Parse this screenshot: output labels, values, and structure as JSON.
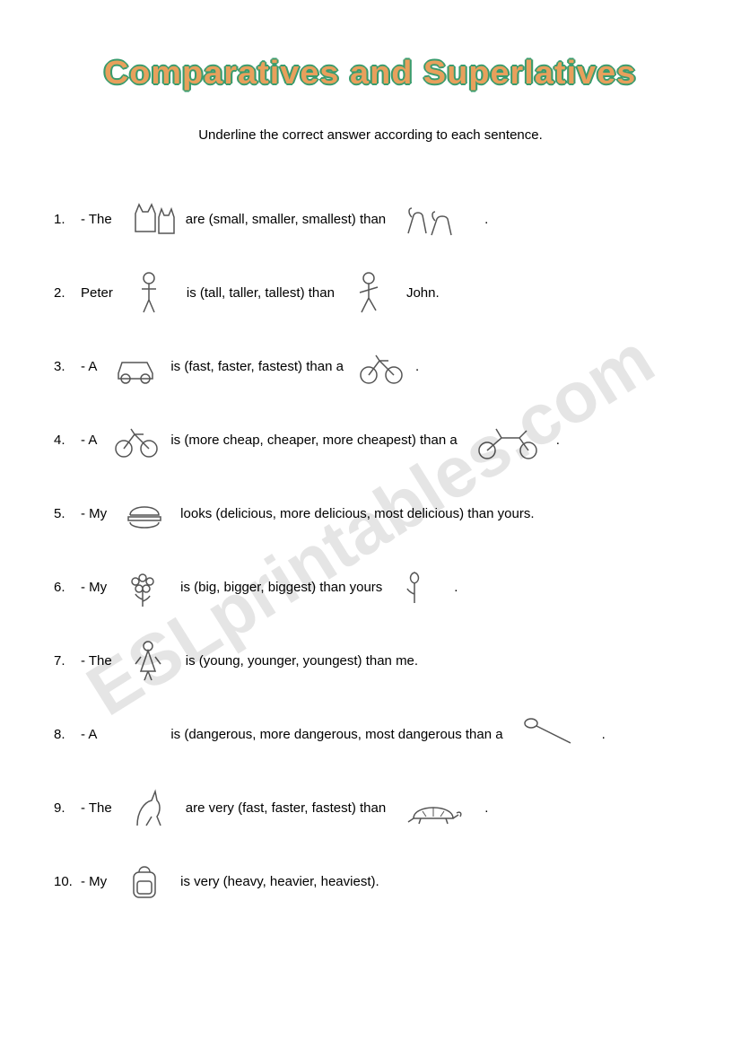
{
  "title": "Comparatives and Superlatives",
  "title_fontsize": 36,
  "title_fill": "#e8a05c",
  "title_outline": "#3a9c6e",
  "instruction": "Underline the correct answer according to each sentence.",
  "instruction_fontsize": 15,
  "body_fontsize": 15,
  "text_color": "#000000",
  "background_color": "#ffffff",
  "watermark": "ESLprintables.com",
  "watermark_fontsize": 80,
  "watermark_color_rgba": "rgba(0,0,0,0.10)",
  "items": [
    {
      "num": "1.",
      "prefix": "- The",
      "icon1": "cats-icon",
      "options": "are (small, smaller, smallest) than",
      "icon2": "dogs-icon",
      "suffix": "."
    },
    {
      "num": "2.",
      "prefix": "Peter",
      "icon1": "boy-icon",
      "options": "is (tall, taller, tallest) than",
      "icon2": "boy2-icon",
      "suffix": "John."
    },
    {
      "num": "3.",
      "prefix": "- A",
      "icon1": "car-icon",
      "options": "is (fast, faster, fastest) than a",
      "icon2": "bicycle-icon",
      "suffix": "."
    },
    {
      "num": "4.",
      "prefix": "- A",
      "icon1": "bicycle-icon",
      "options": "is (more cheap, cheaper, more cheapest) than a",
      "icon2": "motorcycle-icon",
      "suffix": "."
    },
    {
      "num": "5.",
      "prefix": "- My",
      "icon1": "burger-icon",
      "options": "looks (delicious, more delicious, most delicious) than yours.",
      "icon2": "",
      "suffix": ""
    },
    {
      "num": "6.",
      "prefix": "- My",
      "icon1": "flower-icon",
      "options": "is (big, bigger, biggest) than yours",
      "icon2": "rose-icon",
      "suffix": "."
    },
    {
      "num": "7.",
      "prefix": "- The",
      "icon1": "girl-icon",
      "options": "is (young, younger, youngest) than me.",
      "icon2": "",
      "suffix": ""
    },
    {
      "num": "8.",
      "prefix": "- A",
      "icon1": "blank-icon",
      "options": "is (dangerous, more dangerous, most dangerous than a",
      "icon2": "spoon-icon",
      "suffix": "."
    },
    {
      "num": "9.",
      "prefix": "- The",
      "icon1": "kangaroo-icon",
      "options": "are very (fast, faster, fastest) than",
      "icon2": "turtle-icon",
      "suffix": "."
    },
    {
      "num": "10.",
      "prefix": "- My",
      "icon1": "backpack-icon",
      "options": "is very (heavy, heavier, heaviest).",
      "icon2": "",
      "suffix": ""
    }
  ]
}
